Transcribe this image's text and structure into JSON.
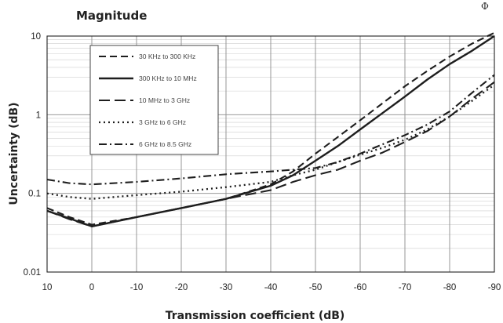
{
  "corner_glyph": "Φ",
  "chart_data": {
    "type": "line",
    "title": "Magnitude",
    "xlabel": "Transmission coefficient (dB)",
    "ylabel": "Uncertainty (dB)",
    "x_reversed": true,
    "xlim": [
      10,
      -90
    ],
    "ylim": [
      0.01,
      10
    ],
    "y_scale": "log",
    "grid": true,
    "legend_position": "top-left",
    "x_ticks": [
      {
        "value": 10,
        "label": "10"
      },
      {
        "value": 0,
        "label": "0"
      },
      {
        "value": -10,
        "label": "-10"
      },
      {
        "value": -20,
        "label": "-20"
      },
      {
        "value": -30,
        "label": "-30"
      },
      {
        "value": -40,
        "label": "-40"
      },
      {
        "value": -50,
        "label": "-50"
      },
      {
        "value": -60,
        "label": "-60"
      },
      {
        "value": -70,
        "label": "-70"
      },
      {
        "value": -80,
        "label": "-80"
      },
      {
        "value": -90,
        "label": "-90"
      }
    ],
    "y_ticks": [
      {
        "value": 10,
        "label": "10"
      },
      {
        "value": 1,
        "label": "1"
      },
      {
        "value": 0.1,
        "label": "0.1"
      },
      {
        "value": 0.01,
        "label": "0.01"
      }
    ],
    "series": [
      {
        "name": "30 KHz to 300 KHz",
        "dash": "dash",
        "points": [
          [
            10,
            0.065
          ],
          [
            5,
            0.05
          ],
          [
            0,
            0.04
          ],
          [
            -10,
            0.05
          ],
          [
            -20,
            0.065
          ],
          [
            -30,
            0.085
          ],
          [
            -40,
            0.13
          ],
          [
            -45,
            0.19
          ],
          [
            -50,
            0.32
          ],
          [
            -55,
            0.52
          ],
          [
            -60,
            0.85
          ],
          [
            -65,
            1.4
          ],
          [
            -70,
            2.3
          ],
          [
            -75,
            3.6
          ],
          [
            -80,
            5.5
          ],
          [
            -85,
            8
          ],
          [
            -90,
            11
          ]
        ]
      },
      {
        "name": "300 KHz to 10 MHz",
        "dash": "solid",
        "points": [
          [
            10,
            0.06
          ],
          [
            5,
            0.048
          ],
          [
            0,
            0.038
          ],
          [
            -10,
            0.05
          ],
          [
            -20,
            0.065
          ],
          [
            -30,
            0.085
          ],
          [
            -40,
            0.125
          ],
          [
            -45,
            0.17
          ],
          [
            -50,
            0.26
          ],
          [
            -55,
            0.4
          ],
          [
            -60,
            0.65
          ],
          [
            -65,
            1.05
          ],
          [
            -70,
            1.7
          ],
          [
            -75,
            2.8
          ],
          [
            -80,
            4.4
          ],
          [
            -85,
            6.5
          ],
          [
            -90,
            10
          ]
        ]
      },
      {
        "name": "10 MHz to 3 GHz",
        "dash": "longdash",
        "points": [
          [
            10,
            0.06
          ],
          [
            5,
            0.047
          ],
          [
            0,
            0.038
          ],
          [
            -10,
            0.05
          ],
          [
            -20,
            0.065
          ],
          [
            -30,
            0.085
          ],
          [
            -40,
            0.11
          ],
          [
            -45,
            0.14
          ],
          [
            -50,
            0.17
          ],
          [
            -55,
            0.2
          ],
          [
            -60,
            0.26
          ],
          [
            -65,
            0.33
          ],
          [
            -70,
            0.45
          ],
          [
            -75,
            0.62
          ],
          [
            -80,
            0.95
          ],
          [
            -85,
            1.6
          ],
          [
            -90,
            2.6
          ]
        ]
      },
      {
        "name": "3 GHz to 6 GHz",
        "dash": "dot",
        "points": [
          [
            10,
            0.1
          ],
          [
            5,
            0.09
          ],
          [
            0,
            0.085
          ],
          [
            -10,
            0.095
          ],
          [
            -20,
            0.105
          ],
          [
            -30,
            0.12
          ],
          [
            -40,
            0.14
          ],
          [
            -45,
            0.17
          ],
          [
            -50,
            0.2
          ],
          [
            -55,
            0.25
          ],
          [
            -60,
            0.31
          ],
          [
            -65,
            0.38
          ],
          [
            -70,
            0.48
          ],
          [
            -75,
            0.65
          ],
          [
            -80,
            0.95
          ],
          [
            -85,
            1.5
          ],
          [
            -90,
            2.4
          ]
        ]
      },
      {
        "name": "6 GHz to 8.5 GHz",
        "dash": "dashdot",
        "points": [
          [
            10,
            0.15
          ],
          [
            5,
            0.135
          ],
          [
            0,
            0.13
          ],
          [
            -10,
            0.14
          ],
          [
            -20,
            0.155
          ],
          [
            -30,
            0.175
          ],
          [
            -40,
            0.19
          ],
          [
            -45,
            0.2
          ],
          [
            -50,
            0.21
          ],
          [
            -55,
            0.25
          ],
          [
            -60,
            0.32
          ],
          [
            -65,
            0.42
          ],
          [
            -70,
            0.55
          ],
          [
            -75,
            0.75
          ],
          [
            -80,
            1.1
          ],
          [
            -85,
            1.9
          ],
          [
            -90,
            3.2
          ]
        ]
      }
    ]
  }
}
